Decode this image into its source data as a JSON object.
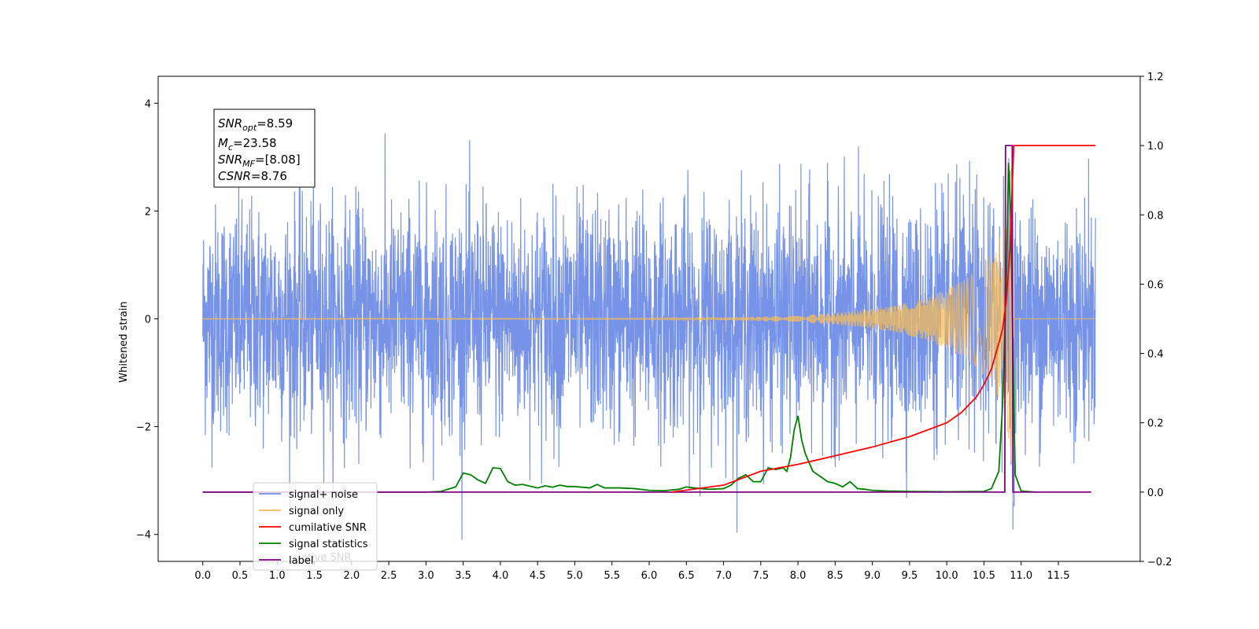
{
  "chart_data": {
    "type": "line",
    "title": "",
    "xlabel": "",
    "ylabel": "Whitened strain",
    "y2label": "",
    "xlim": [
      -0.6,
      12.6
    ],
    "ylim": [
      -4.5,
      4.5
    ],
    "y2lim": [
      -0.2,
      1.2
    ],
    "x_ticks": [
      "0.0",
      "0.5",
      "1.0",
      "1.5",
      "2.0",
      "2.5",
      "3.0",
      "3.5",
      "4.0",
      "4.5",
      "5.0",
      "5.5",
      "6.0",
      "6.5",
      "7.0",
      "7.5",
      "8.0",
      "8.5",
      "9.0",
      "9.5",
      "10.0",
      "10.5",
      "11.0",
      "11.5"
    ],
    "y_ticks": [
      "4",
      "2",
      "0",
      "−2",
      "−4"
    ],
    "y_tick_values": [
      4,
      2,
      0,
      -2,
      -4
    ],
    "y2_ticks": [
      "1.2",
      "1.0",
      "0.8",
      "0.6",
      "0.4",
      "0.2",
      "0.0",
      "−0.2"
    ],
    "y2_tick_values": [
      1.2,
      1.0,
      0.8,
      0.6,
      0.4,
      0.2,
      0.0,
      -0.2
    ],
    "grid": false,
    "legend_placement": "lower-left",
    "legend": [
      {
        "name": "signal+ noise",
        "color": "#6f8de6"
      },
      {
        "name": "signal only",
        "color": "#f5bc5a"
      },
      {
        "name": "cumilative SNR",
        "color": "#ff0000"
      },
      {
        "name": "signal statistics",
        "color": "#007f00"
      },
      {
        "name": "label",
        "color": "#800080"
      }
    ],
    "legend_ghost_text": "ative SNR",
    "annotation": [
      {
        "base": "SNR",
        "sub": "opt",
        "value": "=8.59"
      },
      {
        "base": "M",
        "sub": "c",
        "value": "=23.58"
      },
      {
        "base": "SNR",
        "sub": "MF",
        "value": "=[8.08]"
      },
      {
        "base": "CSNR",
        "sub": "",
        "value": "=8.76"
      }
    ],
    "series": [
      {
        "name": "signal+ noise",
        "axis": "left",
        "color": "#6f8de6",
        "description": "whitened noise with unit variance over x 0.0 to 12.0, amplitude peaks about ±4",
        "x_range": [
          0.0,
          12.0
        ],
        "envelope": [
          -4.1,
          4.1
        ]
      },
      {
        "name": "signal only",
        "axis": "left",
        "color": "#f5bc5a",
        "chirp_end_x": 10.9,
        "peak_amplitude": 3.4
      },
      {
        "name": "cumilative SNR",
        "axis": "right",
        "color": "#ff0000",
        "x": [
          6.3,
          7.0,
          7.5,
          8.0,
          8.5,
          9.0,
          9.5,
          10.0,
          10.2,
          10.4,
          10.5,
          10.6,
          10.7,
          10.75,
          10.8,
          10.85,
          10.9,
          10.95,
          12.0
        ],
        "values": [
          0.0,
          0.02,
          0.06,
          0.08,
          0.105,
          0.13,
          0.16,
          0.2,
          0.23,
          0.275,
          0.31,
          0.355,
          0.43,
          0.47,
          0.55,
          0.7,
          1.0,
          1.0,
          1.0
        ]
      },
      {
        "name": "signal statistics",
        "axis": "right",
        "color": "#007f00",
        "x": [
          0.0,
          1.0,
          2.0,
          3.0,
          3.2,
          3.4,
          3.5,
          3.6,
          3.7,
          3.8,
          3.9,
          4.0,
          4.1,
          4.2,
          4.3,
          4.5,
          4.6,
          4.7,
          4.8,
          4.9,
          5.0,
          5.1,
          5.2,
          5.3,
          5.4,
          5.6,
          5.8,
          6.0,
          6.2,
          6.4,
          6.5,
          6.6,
          6.8,
          7.0,
          7.1,
          7.2,
          7.3,
          7.4,
          7.5,
          7.6,
          7.7,
          7.8,
          7.85,
          7.9,
          7.95,
          8.0,
          8.05,
          8.1,
          8.2,
          8.3,
          8.4,
          8.5,
          8.6,
          8.7,
          8.8,
          8.9,
          9.0,
          9.2,
          9.5,
          10.0,
          10.5,
          10.6,
          10.7,
          10.75,
          10.8,
          10.83,
          10.86,
          10.89,
          10.92,
          11.0,
          11.2
        ],
        "values": [
          0.0,
          0.0,
          0.0,
          0.0,
          0.002,
          0.015,
          0.055,
          0.05,
          0.035,
          0.025,
          0.07,
          0.068,
          0.03,
          0.02,
          0.022,
          0.012,
          0.018,
          0.014,
          0.02,
          0.016,
          0.016,
          0.014,
          0.012,
          0.022,
          0.012,
          0.012,
          0.01,
          0.005,
          0.004,
          0.008,
          0.015,
          0.012,
          0.008,
          0.01,
          0.02,
          0.04,
          0.05,
          0.03,
          0.03,
          0.07,
          0.065,
          0.07,
          0.06,
          0.1,
          0.18,
          0.22,
          0.15,
          0.11,
          0.06,
          0.045,
          0.03,
          0.025,
          0.015,
          0.03,
          0.01,
          0.008,
          0.005,
          0.003,
          0.002,
          0.001,
          0.002,
          0.01,
          0.06,
          0.25,
          0.6,
          0.95,
          0.8,
          0.4,
          0.05,
          0.003,
          0.0
        ]
      },
      {
        "name": "label",
        "axis": "right",
        "color": "#800080",
        "x": [
          0.0,
          10.78,
          10.79,
          10.88,
          10.89,
          11.94
        ],
        "values": [
          0.0,
          0.0,
          1.0,
          1.0,
          0.0,
          0.0
        ]
      }
    ]
  }
}
